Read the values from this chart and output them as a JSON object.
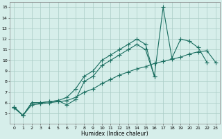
{
  "xlabel": "Humidex (Indice chaleur)",
  "background_color": "#d6eeea",
  "grid_color": "#aaccc6",
  "line_color": "#1a6e60",
  "xlim": [
    -0.5,
    23.5
  ],
  "ylim": [
    4,
    15.5
  ],
  "xticks": [
    0,
    1,
    2,
    3,
    4,
    5,
    6,
    7,
    8,
    9,
    10,
    11,
    12,
    13,
    14,
    15,
    16,
    17,
    18,
    19,
    20,
    21,
    22,
    23
  ],
  "yticks": [
    5,
    6,
    7,
    8,
    9,
    10,
    11,
    12,
    13,
    14,
    15
  ],
  "series": [
    {
      "x": [
        0,
        1,
        2,
        3,
        4,
        5,
        6,
        7,
        8,
        9,
        10,
        11,
        12,
        13,
        14,
        15,
        16,
        17,
        18,
        19,
        20,
        21,
        22
      ],
      "y": [
        5.6,
        4.8,
        6.0,
        6.0,
        6.1,
        6.2,
        6.5,
        7.3,
        8.5,
        9.0,
        10.0,
        10.5,
        11.0,
        11.5,
        12.0,
        11.5,
        8.5,
        15.0,
        10.2,
        12.0,
        11.8,
        11.2,
        9.8
      ]
    },
    {
      "x": [
        0,
        1,
        2,
        3,
        4,
        5,
        6,
        7,
        8,
        9,
        10,
        11,
        12,
        13,
        14,
        15,
        16
      ],
      "y": [
        5.6,
        4.8,
        6.0,
        6.0,
        6.1,
        6.2,
        5.8,
        6.3,
        8.0,
        8.5,
        9.5,
        10.0,
        10.5,
        11.0,
        11.5,
        11.0,
        8.5
      ]
    },
    {
      "x": [
        0,
        1,
        2,
        3,
        4,
        5,
        6,
        7,
        8,
        9,
        10,
        11,
        12,
        13,
        14,
        15,
        16,
        17,
        18,
        19,
        20,
        21,
        22,
        23
      ],
      "y": [
        5.5,
        4.8,
        5.8,
        5.9,
        6.0,
        6.1,
        6.2,
        6.5,
        7.0,
        7.3,
        7.8,
        8.2,
        8.6,
        8.9,
        9.2,
        9.4,
        9.7,
        9.9,
        10.1,
        10.3,
        10.6,
        10.8,
        10.9,
        9.8
      ]
    }
  ]
}
